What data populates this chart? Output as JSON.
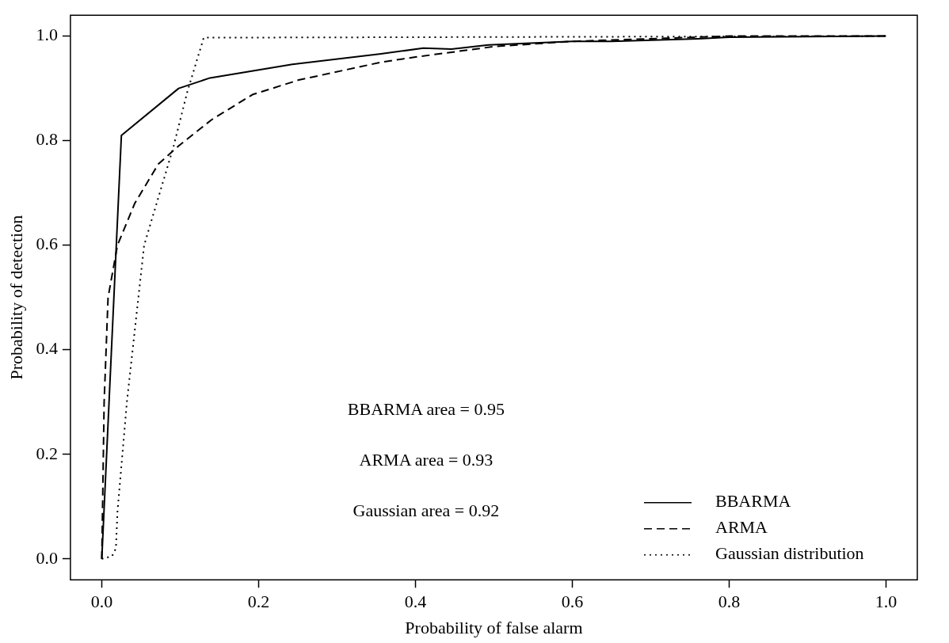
{
  "chart_data": {
    "type": "line",
    "xlabel": "Probability of false alarm",
    "ylabel": "Probability of detection",
    "xlim": [
      -0.04,
      1.04
    ],
    "ylim": [
      -0.04,
      1.04
    ],
    "xticks": [
      {
        "value": 0,
        "label": "0.0"
      },
      {
        "value": 0.2,
        "label": "0.2"
      },
      {
        "value": 0.4,
        "label": "0.4"
      },
      {
        "value": 0.6,
        "label": "0.6"
      },
      {
        "value": 0.8,
        "label": "0.8"
      },
      {
        "value": 1,
        "label": "1.0"
      }
    ],
    "yticks": [
      {
        "value": 0,
        "label": "0.0"
      },
      {
        "value": 0.2,
        "label": "0.2"
      },
      {
        "value": 0.4,
        "label": "0.4"
      },
      {
        "value": 0.6,
        "label": "0.6"
      },
      {
        "value": 0.8,
        "label": "0.8"
      },
      {
        "value": 1,
        "label": "1.0"
      }
    ],
    "grid": false,
    "legend": "bottom right",
    "marker": "none",
    "annotations": [
      "BBARMA area = 0.95",
      "ARMA area = 0.93",
      "Gaussian area = 0.92"
    ],
    "series": [
      {
        "name": "BBARMA",
        "color": "#000000",
        "line_style": "solid",
        "x": [
          0,
          0.025,
          0.098,
          0.138,
          0.243,
          0.356,
          0.41,
          0.446,
          0.493,
          0.6,
          0.65,
          0.76,
          0.8,
          1
        ],
        "values": [
          0,
          0.81,
          0.9,
          0.92,
          0.946,
          0.966,
          0.977,
          0.975,
          0.983,
          0.99,
          0.99,
          0.995,
          0.998,
          1
        ]
      },
      {
        "name": "ARMA",
        "color": "#000000",
        "line_style": "dashed",
        "x": [
          0,
          0.003,
          0.008,
          0.02,
          0.042,
          0.072,
          0.098,
          0.14,
          0.192,
          0.251,
          0.356,
          0.4,
          0.5,
          0.6,
          0.8,
          1
        ],
        "values": [
          0,
          0.3,
          0.5,
          0.6,
          0.68,
          0.755,
          0.79,
          0.84,
          0.888,
          0.916,
          0.95,
          0.96,
          0.98,
          0.99,
          1,
          1
        ]
      },
      {
        "name": "Gaussian distribution",
        "color": "#000000",
        "line_style": "dotted",
        "x": [
          0,
          0.013,
          0.018,
          0.02,
          0.032,
          0.054,
          0.091,
          0.109,
          0.13,
          1
        ],
        "values": [
          0,
          0.005,
          0.02,
          0.09,
          0.3,
          0.6,
          0.786,
          0.893,
          0.997,
          1
        ]
      }
    ]
  }
}
